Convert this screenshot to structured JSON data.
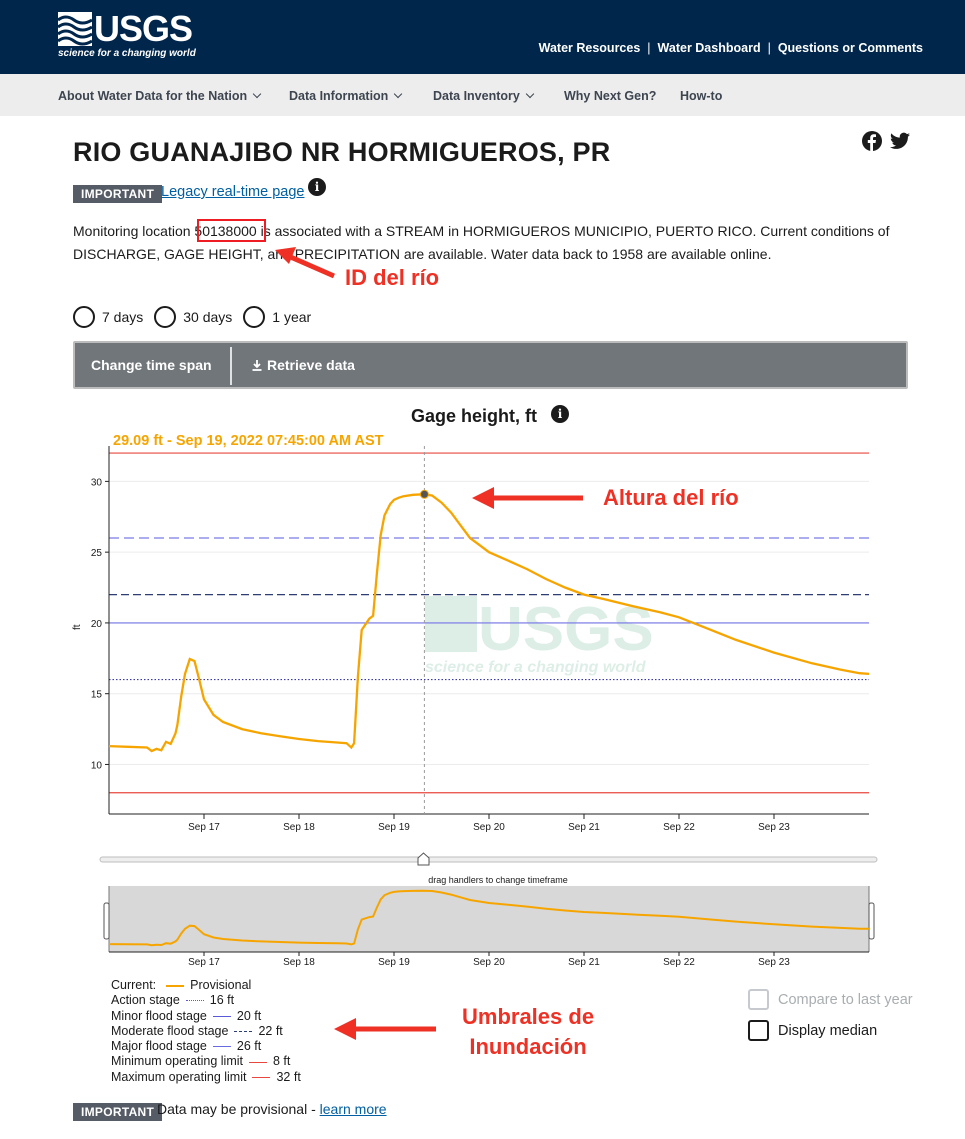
{
  "header": {
    "logo_text": "USGS",
    "logo_tagline": "science for a changing world",
    "links": [
      "Water Resources",
      "Water Dashboard",
      "Questions or Comments"
    ],
    "separator": "|"
  },
  "nav": {
    "items": [
      {
        "label": "About Water Data for the Nation",
        "has_dropdown": true
      },
      {
        "label": "Data Information",
        "has_dropdown": true
      },
      {
        "label": "Data Inventory",
        "has_dropdown": true
      },
      {
        "label": "Why Next Gen?",
        "has_dropdown": false
      },
      {
        "label": "How-to",
        "has_dropdown": false
      }
    ]
  },
  "page": {
    "title": "RIO GUANAJIBO NR HORMIGUEROS, PR",
    "important_badge": "IMPORTANT",
    "legacy_link": "Legacy real-time page",
    "info_glyph": "i",
    "description_before_id": "Monitoring location ",
    "site_id": "50138000",
    "description_after_id": " is associated with a STREAM in HORMIGUEROS MUNICIPIO, PUERTO RICO. Current conditions of DISCHARGE, GAGE HEIGHT, and PRECIPITATION are available. Water data back to 1958 are available online."
  },
  "time_span": {
    "options": [
      "7 days",
      "30 days",
      "1 year"
    ],
    "selected": null
  },
  "actions": {
    "change_time_span": "Change time span",
    "retrieve_data": "Retrieve data",
    "retrieve_icon": "download-icon"
  },
  "annotations": {
    "river_id": "ID del río",
    "river_height": "Altura del río",
    "flood_thresholds_line1": "Umbrales de",
    "flood_thresholds_line2": "Inundación"
  },
  "colors": {
    "series": "#f6a500",
    "annotation_red": "#ee3124",
    "header_bg": "#00264c",
    "action_stage": "#5a5ad8",
    "flood_stage": "#5a5ad8",
    "op_limit": "#e8473f"
  },
  "chart_data": {
    "type": "line",
    "title": "Gage height, ft",
    "ylabel": "ft",
    "xlabel": "",
    "hover_readout": "29.09 ft - Sep 19, 2022 07:45:00 AM AST",
    "ylim": [
      6.5,
      32.5
    ],
    "yticks": [
      10,
      15,
      20,
      25,
      30
    ],
    "xlim_days": [
      16.0,
      24.0
    ],
    "xticks": [
      {
        "label": "Sep 17",
        "day": 17
      },
      {
        "label": "Sep 18",
        "day": 18
      },
      {
        "label": "Sep 19",
        "day": 19
      },
      {
        "label": "Sep 20",
        "day": 20
      },
      {
        "label": "Sep 21",
        "day": 21
      },
      {
        "label": "Sep 22",
        "day": 22
      },
      {
        "label": "Sep 23",
        "day": 23
      }
    ],
    "cursor_day": 19.32,
    "cursor_value": 29.09,
    "series": [
      {
        "name": "Provisional",
        "x": [
          16.0,
          16.2,
          16.4,
          16.45,
          16.5,
          16.55,
          16.6,
          16.65,
          16.7,
          16.72,
          16.76,
          16.8,
          16.85,
          16.9,
          16.95,
          17.0,
          17.1,
          17.2,
          17.4,
          17.6,
          17.8,
          18.0,
          18.2,
          18.4,
          18.5,
          18.55,
          18.58,
          18.62,
          18.66,
          18.7,
          18.74,
          18.78,
          18.82,
          18.86,
          18.9,
          18.93,
          18.96,
          19.0,
          19.05,
          19.1,
          19.2,
          19.3,
          19.4,
          19.5,
          19.6,
          19.7,
          19.8,
          19.9,
          20.0,
          20.2,
          20.4,
          20.6,
          20.8,
          21.0,
          21.2,
          21.5,
          21.8,
          22.0,
          22.3,
          22.6,
          23.0,
          23.4,
          23.7,
          23.9,
          24.0
        ],
        "values": [
          11.3,
          11.25,
          11.2,
          10.95,
          11.1,
          11.0,
          11.6,
          11.45,
          12.2,
          12.8,
          14.8,
          16.4,
          17.45,
          17.3,
          16.0,
          14.6,
          13.5,
          13.0,
          12.5,
          12.2,
          12.0,
          11.8,
          11.65,
          11.55,
          11.5,
          11.2,
          11.5,
          16.2,
          19.5,
          19.9,
          20.3,
          20.5,
          23.5,
          26.2,
          27.6,
          28.0,
          28.4,
          28.7,
          28.85,
          28.95,
          29.05,
          29.09,
          29.0,
          28.5,
          27.8,
          26.9,
          26.0,
          25.5,
          25.0,
          24.4,
          23.8,
          23.1,
          22.5,
          22.0,
          21.7,
          21.2,
          20.75,
          20.4,
          19.6,
          18.8,
          17.9,
          17.15,
          16.7,
          16.45,
          16.4
        ]
      }
    ],
    "thresholds": [
      {
        "name": "Action stage",
        "value": 16,
        "label": "16 ft",
        "style": "dotted"
      },
      {
        "name": "Minor flood stage",
        "value": 20,
        "label": "20 ft",
        "style": "solid"
      },
      {
        "name": "Moderate flood stage",
        "value": 22,
        "label": "22 ft",
        "style": "dashed-dark"
      },
      {
        "name": "Major flood stage",
        "value": 26,
        "label": "26 ft",
        "style": "dashed"
      },
      {
        "name": "Minimum operating limit",
        "value": 8,
        "label": "8 ft",
        "style": "op"
      },
      {
        "name": "Maximum operating limit",
        "value": 32,
        "label": "32 ft",
        "style": "op"
      }
    ],
    "brush_hint": "drag handlers to change timeframe"
  },
  "legend": {
    "current_label": "Current:",
    "provisional_label": "Provisional"
  },
  "options": {
    "compare_last_year": "Compare to last year",
    "display_median": "Display median"
  },
  "footer": {
    "badge": "IMPORTANT",
    "text": "Data may be provisional - ",
    "link": "learn more"
  }
}
